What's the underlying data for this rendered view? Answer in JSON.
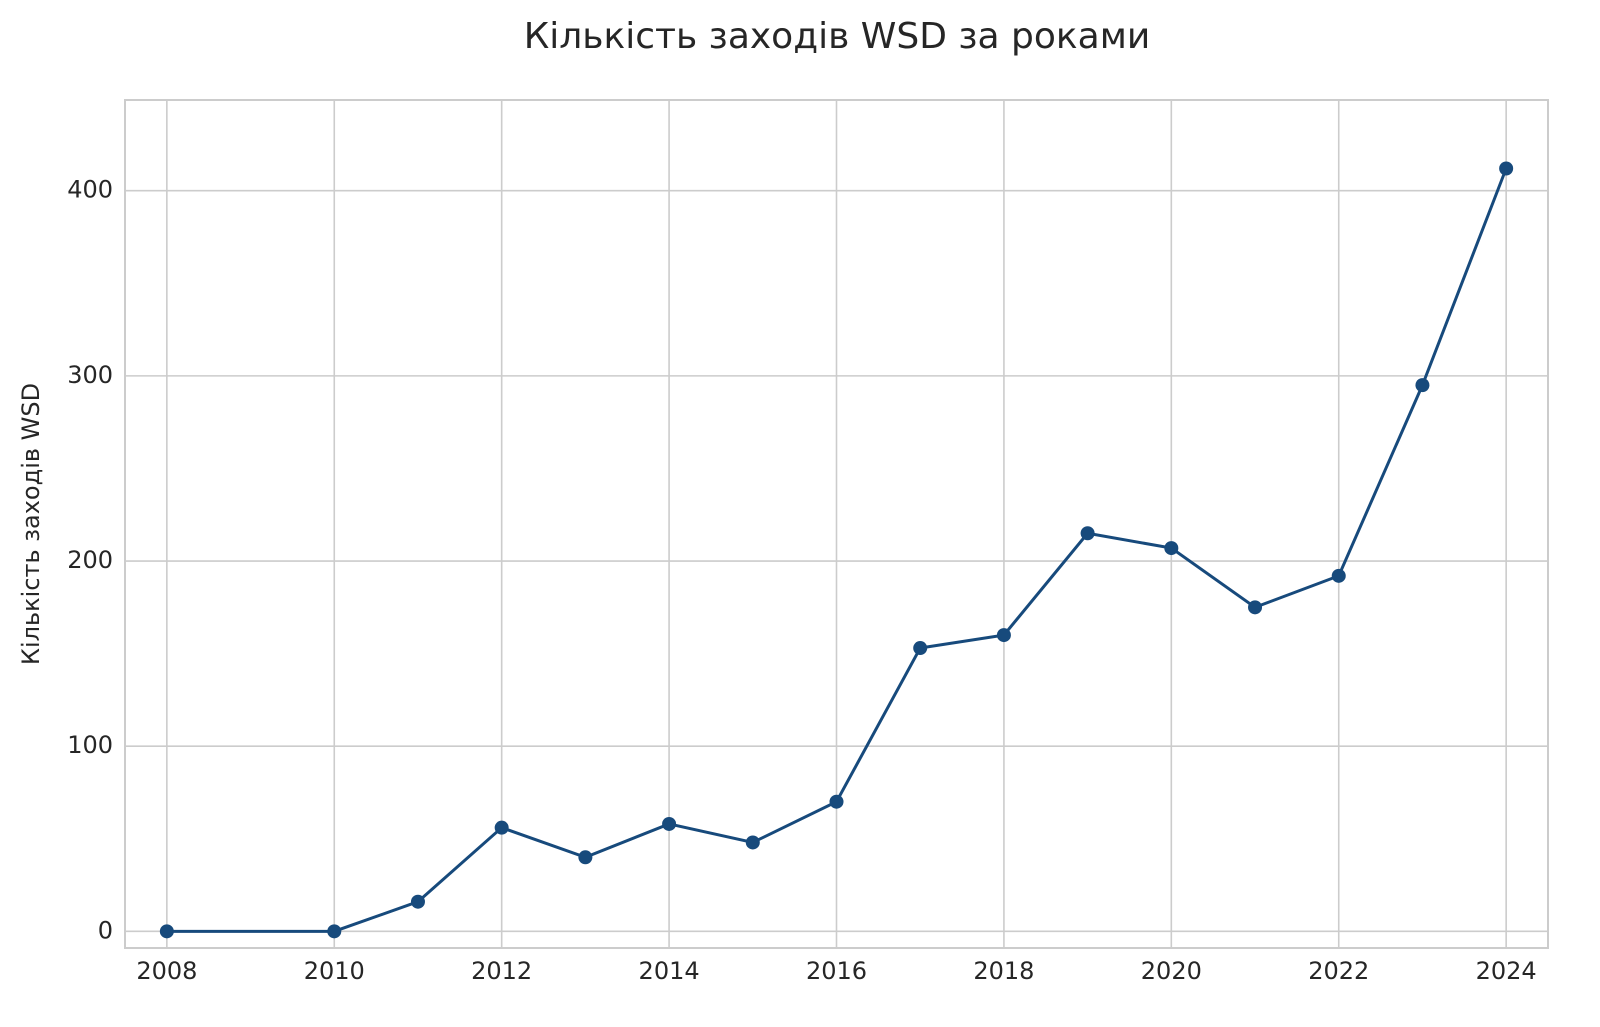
{
  "chart_data": {
    "type": "line",
    "title": "Кількість заходів WSD за роками",
    "y_label": "Кількість заходів WSD",
    "x": [
      2008,
      2010,
      2011,
      2012,
      2013,
      2014,
      2015,
      2016,
      2017,
      2018,
      2019,
      2020,
      2021,
      2022,
      2023,
      2024
    ],
    "values": [
      0,
      0,
      16,
      56,
      40,
      58,
      48,
      70,
      153,
      160,
      215,
      207,
      175,
      192,
      295,
      412
    ],
    "color": "#174a7c",
    "xlim": [
      2007.5,
      2024.5
    ],
    "xticks": [
      2008,
      2010,
      2012,
      2014,
      2016,
      2018,
      2020,
      2022,
      2024
    ],
    "ylim": [
      -9,
      449
    ],
    "yticks": [
      0,
      100,
      200,
      300,
      400
    ],
    "grid": true,
    "markers": true
  }
}
